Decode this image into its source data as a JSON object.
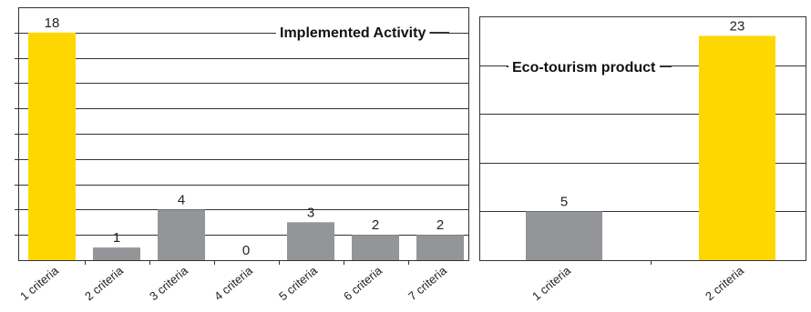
{
  "colors": {
    "highlight": "#FFD700",
    "normal": "#939598"
  },
  "chart_data": [
    {
      "type": "bar",
      "title": "Implemented Activity",
      "categories": [
        "1 criteria",
        "2 criteria",
        "3 criteria",
        "4 criteria",
        "5 criteria",
        "6 criteria",
        "7 criteria"
      ],
      "values": [
        18,
        1,
        4,
        0,
        3,
        2,
        2
      ],
      "highlight": [
        true,
        false,
        false,
        false,
        false,
        false,
        false
      ],
      "ylim": [
        0,
        20
      ],
      "grid": true,
      "legend": "none"
    },
    {
      "type": "bar",
      "title": "Eco-tourism product",
      "categories": [
        "1 criteria",
        "2 criteria"
      ],
      "values": [
        5,
        23
      ],
      "highlight": [
        false,
        true
      ],
      "ylim": [
        0,
        25
      ],
      "grid": true,
      "legend": "none"
    }
  ]
}
